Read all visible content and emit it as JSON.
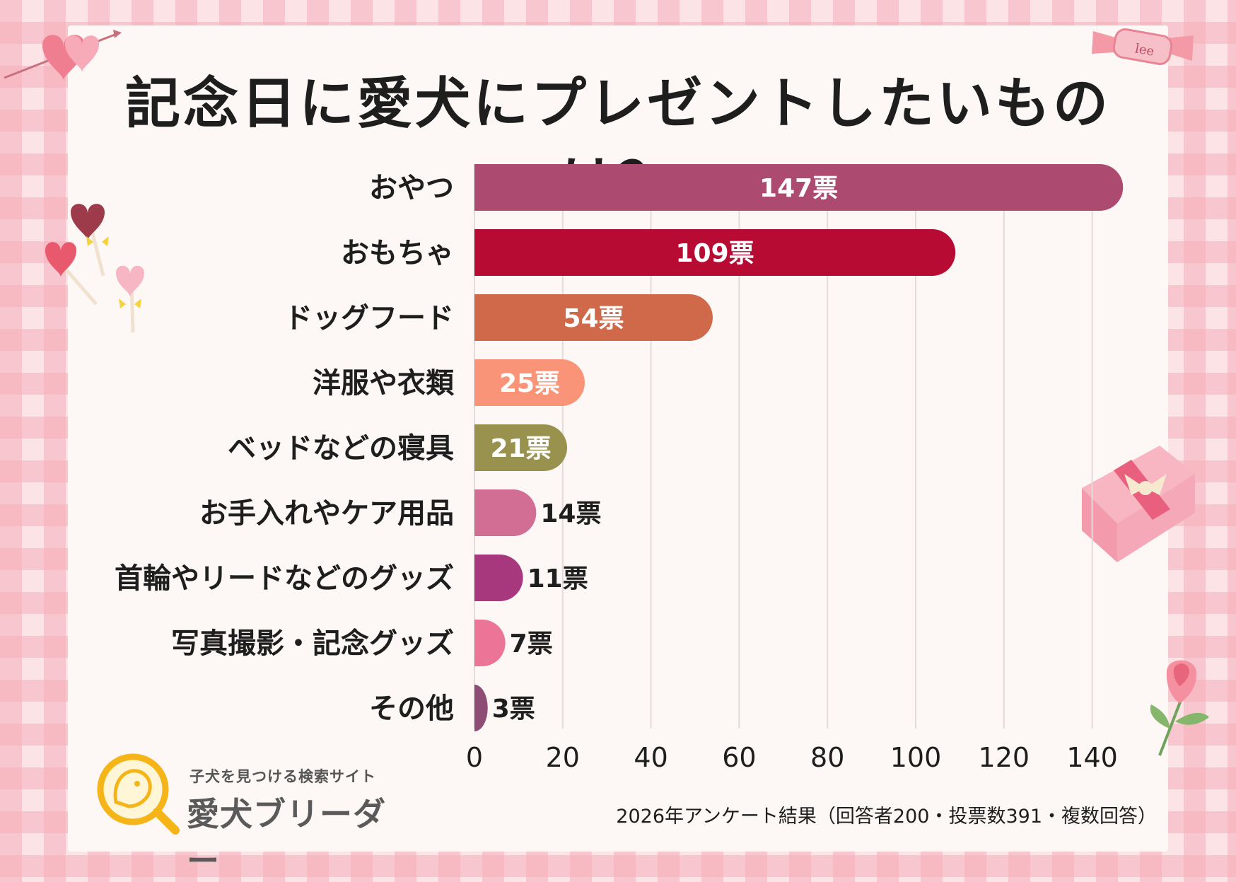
{
  "title": "記念日に愛犬にプレゼントしたいものは？",
  "chart_data": {
    "type": "bar",
    "orientation": "horizontal",
    "categories": [
      "おやつ",
      "おもちゃ",
      "ドッグフード",
      "洋服や衣類",
      "ベッドなどの寝具",
      "お手入れやケア用品",
      "首輪やリードなどのグッズ",
      "写真撮影・記念グッズ",
      "その他"
    ],
    "values": [
      147,
      109,
      54,
      25,
      21,
      14,
      11,
      7,
      3
    ],
    "value_labels": [
      "147票",
      "109票",
      "54票",
      "25票",
      "21票",
      "14票",
      "11票",
      "7票",
      "3票"
    ],
    "colors": [
      "#ac4b6f",
      "#b80b34",
      "#d0694a",
      "#f99478",
      "#99914e",
      "#d26d93",
      "#a8387d",
      "#ec7496",
      "#8d4d75"
    ],
    "xlim": [
      0,
      150
    ],
    "xticks": [
      0,
      20,
      40,
      60,
      80,
      100,
      120,
      140
    ],
    "grid": true,
    "xlabel": "",
    "ylabel": ""
  },
  "brand": {
    "tagline": "子犬を見つける検索サイト",
    "name": "愛犬ブリーダー"
  },
  "footnote": "2026年アンケート結果（回答者200・投票数391・複数回答）"
}
